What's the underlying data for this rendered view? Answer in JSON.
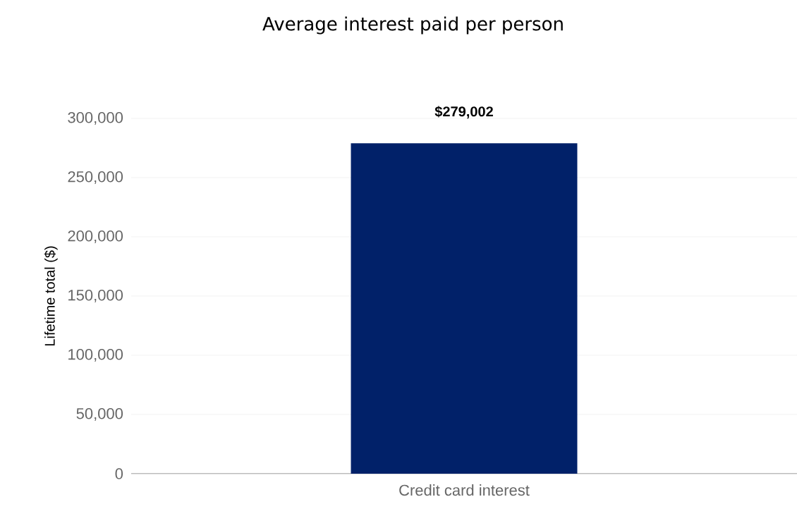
{
  "chart_data": {
    "type": "bar",
    "title": "Average interest paid per person",
    "ylabel": "Lifetime total ($)",
    "categories": [
      "Credit card interest"
    ],
    "values": [
      279002
    ],
    "value_labels": [
      "$279,002"
    ],
    "color": "#012169",
    "ylim": [
      0,
      300000
    ],
    "yticks": [
      {
        "value": 0,
        "label": "0"
      },
      {
        "value": 50000,
        "label": "50,000"
      },
      {
        "value": 100000,
        "label": "100,000"
      },
      {
        "value": 150000,
        "label": "150,000"
      },
      {
        "value": 200000,
        "label": "200,000"
      },
      {
        "value": 250000,
        "label": "250,000"
      },
      {
        "value": 300000,
        "label": "300,000"
      }
    ],
    "grid": "y"
  }
}
